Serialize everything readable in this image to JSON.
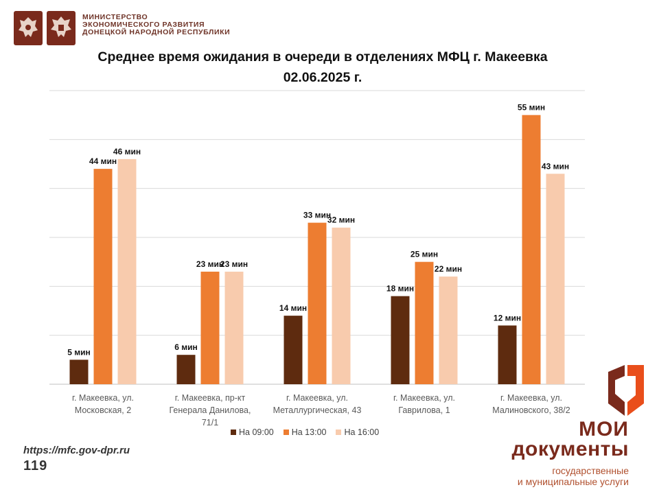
{
  "header": {
    "ministry_lines": [
      "МИНИСТЕРСТВО",
      "ЭКОНОМИЧЕСКОГО РАЗВИТИЯ",
      "ДОНЕЦКОЙ НАРОДНОЙ РЕСПУБЛИКИ"
    ],
    "emblem_color": "#7a2a1c"
  },
  "chart_data": {
    "type": "bar",
    "title_line1": "Среднее время ожидания в очереди в отделениях МФЦ г. Макеевка",
    "title_line2": "02.06.2025 г.",
    "categories": [
      [
        "г. Макеевка, ул.",
        "Московская, 2"
      ],
      [
        "г. Макеевка, пр-кт",
        "Генерала Данилова,",
        "71/1"
      ],
      [
        "г. Макеевка, ул.",
        "Металлургическая, 43"
      ],
      [
        "г. Макеевка, ул.",
        "Гаврилова, 1"
      ],
      [
        "г. Макеевка, ул.",
        "Малиновского, 38/2"
      ]
    ],
    "series": [
      {
        "name": "На 09:00",
        "color": "#5e2b0f",
        "values": [
          5,
          6,
          14,
          18,
          12
        ]
      },
      {
        "name": "На 13:00",
        "color": "#ed7d31",
        "values": [
          44,
          23,
          33,
          25,
          55
        ]
      },
      {
        "name": "На 16:00",
        "color": "#f8cbad",
        "values": [
          46,
          23,
          32,
          22,
          43
        ]
      }
    ],
    "value_suffix": " мин",
    "ylim": [
      0,
      60
    ],
    "grid": true,
    "legend": "bottom"
  },
  "footer": {
    "url": "https://mfc.gov-dpr.ru",
    "page_number": "119"
  },
  "brand": {
    "line1": "МОИ",
    "line2": "документы",
    "sub1": "государственные",
    "sub2": "и муниципальные услуги",
    "color": "#7a2a1c",
    "accent": "#e94e1b"
  }
}
